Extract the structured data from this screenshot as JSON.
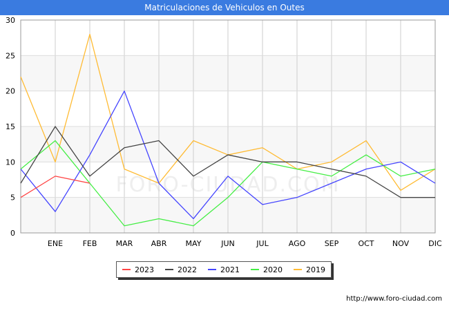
{
  "title": "Matriculaciones de Vehiculos en Outes",
  "watermark": "FORO-CIUDAD.COM",
  "source_url": "http://www.foro-ciudad.com",
  "chart_data": {
    "type": "line",
    "title": "Matriculaciones de Vehiculos en Outes",
    "categories": [
      "",
      "ENE",
      "FEB",
      "MAR",
      "ABR",
      "MAY",
      "JUN",
      "JUL",
      "AGO",
      "SEP",
      "OCT",
      "NOV",
      "DIC"
    ],
    "ylim": [
      0,
      30
    ],
    "yticks": [
      0,
      5,
      10,
      15,
      20,
      25,
      30
    ],
    "grid": true,
    "legend_position": "bottom-center",
    "series": [
      {
        "name": "2023",
        "color": "#ff4444",
        "values": [
          5,
          8,
          7,
          null,
          null,
          null,
          null,
          null,
          null,
          null,
          null,
          null,
          null
        ]
      },
      {
        "name": "2022",
        "color": "#444444",
        "values": [
          7,
          15,
          8,
          12,
          13,
          8,
          11,
          10,
          10,
          9,
          8,
          5,
          5
        ]
      },
      {
        "name": "2021",
        "color": "#4444ff",
        "values": [
          9,
          3,
          11,
          20,
          7,
          2,
          8,
          4,
          5,
          7,
          9,
          10,
          7
        ]
      },
      {
        "name": "2020",
        "color": "#44ee44",
        "values": [
          9,
          13,
          7,
          1,
          2,
          1,
          5,
          10,
          9,
          8,
          11,
          8,
          9
        ]
      },
      {
        "name": "2019",
        "color": "#ffbb33",
        "values": [
          22,
          10,
          28,
          9,
          7,
          13,
          11,
          12,
          9,
          10,
          13,
          6,
          9
        ]
      }
    ]
  }
}
